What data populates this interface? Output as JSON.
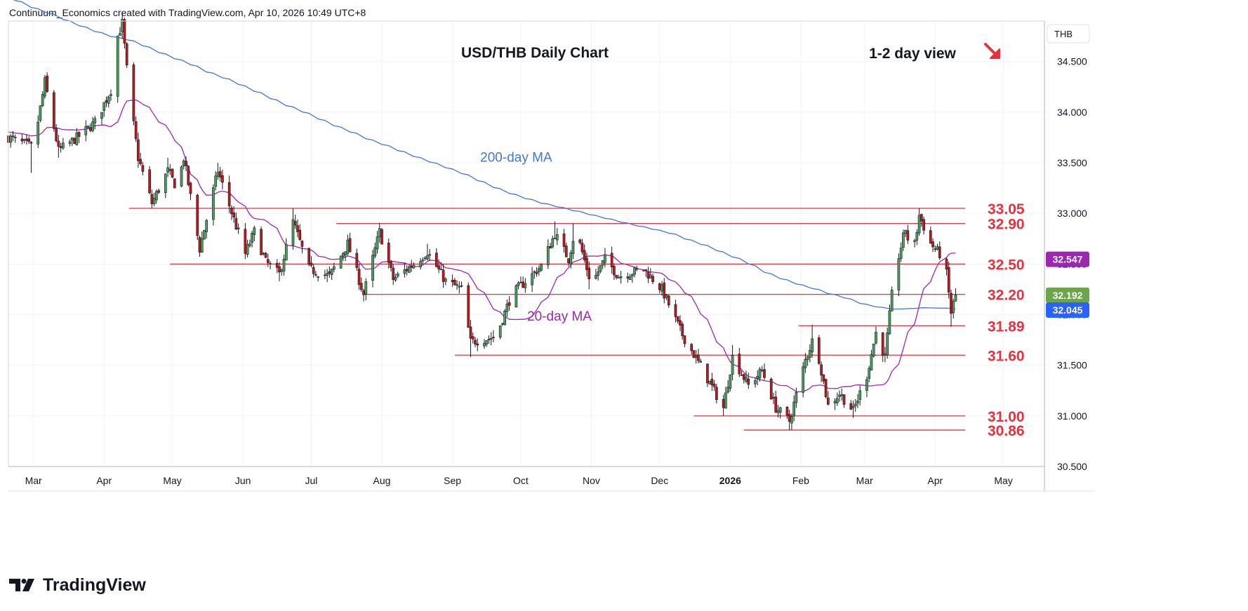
{
  "header": {
    "attribution": "Continuum_Economics created with TradingView.com, Apr 10, 2026 10:49 UTC+8"
  },
  "footer": {
    "brand": "TradingView"
  },
  "colors": {
    "up_candle": "#4c9e5c",
    "down_candle": "#c2171c",
    "ma200": "#3f76e0",
    "ma20": "#9c27b0",
    "levels": "#e5323e",
    "grid": "#f0f3fa",
    "axis_text": "#131722",
    "last_price_bg": "#6ba74a",
    "ma200_tag_bg": "#2962ff",
    "ma20_tag_bg": "#9c27b0"
  },
  "chart_data": {
    "type": "candlestick",
    "title": "USD/THB Daily Chart",
    "view_label": "1-2 day view",
    "view_arrow": "down-right-arrow",
    "currency_label": "THB",
    "ylim": [
      30.5,
      34.9
    ],
    "xlim": [
      "2025-02-18",
      "2026-05-19"
    ],
    "y_ticks": [
      "30.500",
      "31.000",
      "31.500",
      "32.000",
      "32.500",
      "33.000",
      "33.500",
      "34.000",
      "34.500"
    ],
    "x_ticks": [
      {
        "label": "Mar",
        "date": "2025-03-01"
      },
      {
        "label": "Apr",
        "date": "2025-04-01"
      },
      {
        "label": "May",
        "date": "2025-05-01"
      },
      {
        "label": "Jun",
        "date": "2025-06-01"
      },
      {
        "label": "Jul",
        "date": "2025-07-01"
      },
      {
        "label": "Aug",
        "date": "2025-08-01"
      },
      {
        "label": "Sep",
        "date": "2025-09-01"
      },
      {
        "label": "Oct",
        "date": "2025-10-01"
      },
      {
        "label": "Nov",
        "date": "2025-11-01"
      },
      {
        "label": "Dec",
        "date": "2025-12-01"
      },
      {
        "label": "2026",
        "date": "2026-01-01",
        "bold": true
      },
      {
        "label": "Feb",
        "date": "2026-02-01"
      },
      {
        "label": "Mar",
        "date": "2026-03-01"
      },
      {
        "label": "Apr",
        "date": "2026-04-01"
      },
      {
        "label": "May",
        "date": "2026-05-01"
      }
    ],
    "price_tags": [
      {
        "name": "ma20-tag",
        "label": "32.547",
        "value": 32.547,
        "kind": "ma20"
      },
      {
        "name": "last-price-tag",
        "label": "32.192",
        "value": 32.192,
        "kind": "last"
      },
      {
        "name": "ma200-tag",
        "label": "32.045",
        "value": 32.045,
        "kind": "ma200"
      }
    ],
    "levels": [
      {
        "label": "33.05",
        "value": 33.05,
        "from": "2025-04-12"
      },
      {
        "label": "32.90",
        "value": 32.9,
        "from": "2025-07-12"
      },
      {
        "label": "32.50",
        "value": 32.5,
        "from": "2025-04-30"
      },
      {
        "label": "32.20",
        "value": 32.2,
        "from": "2025-07-24"
      },
      {
        "label": "31.89",
        "value": 31.89,
        "from": "2026-01-31"
      },
      {
        "label": "31.60",
        "value": 31.6,
        "from": "2025-09-02"
      },
      {
        "label": "31.00",
        "value": 31.0,
        "from": "2025-12-16"
      },
      {
        "label": "30.86",
        "value": 30.86,
        "from": "2026-01-07"
      }
    ],
    "annotations": [
      {
        "name": "ma200-label",
        "text": "200-day MA",
        "date": "2025-09-29",
        "value": 33.51,
        "color": "ma200"
      },
      {
        "name": "ma20-label",
        "text": "20-day MA",
        "date": "2025-10-18",
        "value": 31.94,
        "color": "ma20"
      }
    ],
    "anchors": [
      {
        "date": "2025-02-18",
        "close": 33.75,
        "low": 33.5
      },
      {
        "date": "2025-03-01",
        "close": 33.65,
        "low": 33.4
      },
      {
        "date": "2025-03-06",
        "close": 34.3,
        "high": 34.32
      },
      {
        "date": "2025-03-12",
        "close": 33.62,
        "low": 33.55
      },
      {
        "date": "2025-03-22",
        "close": 33.78
      },
      {
        "date": "2025-03-28",
        "close": 33.9
      },
      {
        "date": "2025-04-04",
        "close": 34.22
      },
      {
        "date": "2025-04-07",
        "close": 34.75
      },
      {
        "date": "2025-04-09",
        "close": 34.88,
        "high": 34.92
      },
      {
        "date": "2025-04-12",
        "close": 34.2
      },
      {
        "date": "2025-04-16",
        "close": 33.55
      },
      {
        "date": "2025-04-22",
        "close": 33.1,
        "low": 33.05
      },
      {
        "date": "2025-04-29",
        "close": 33.42,
        "high": 33.55
      },
      {
        "date": "2025-05-03",
        "close": 33.25
      },
      {
        "date": "2025-05-06",
        "close": 33.55
      },
      {
        "date": "2025-05-13",
        "close": 32.65,
        "low": 32.6
      },
      {
        "date": "2025-05-21",
        "close": 33.42,
        "high": 33.5
      },
      {
        "date": "2025-06-02",
        "close": 32.6,
        "low": 32.55
      },
      {
        "date": "2025-06-06",
        "close": 32.82
      },
      {
        "date": "2025-06-11",
        "close": 32.52
      },
      {
        "date": "2025-06-17",
        "close": 32.4,
        "low": 32.33
      },
      {
        "date": "2025-06-23",
        "close": 32.92,
        "high": 33.05
      },
      {
        "date": "2025-06-30",
        "close": 32.45
      },
      {
        "date": "2025-07-09",
        "close": 32.38
      },
      {
        "date": "2025-07-17",
        "close": 32.7
      },
      {
        "date": "2025-07-24",
        "close": 32.2,
        "low": 32.13
      },
      {
        "date": "2025-07-31",
        "close": 32.82,
        "high": 32.88
      },
      {
        "date": "2025-08-06",
        "close": 32.35
      },
      {
        "date": "2025-08-15",
        "close": 32.5
      },
      {
        "date": "2025-08-21",
        "close": 32.62,
        "high": 32.7
      },
      {
        "date": "2025-08-29",
        "close": 32.33
      },
      {
        "date": "2025-09-05",
        "close": 32.25
      },
      {
        "date": "2025-09-09",
        "close": 31.73,
        "low": 31.58
      },
      {
        "date": "2025-09-20",
        "close": 31.78
      },
      {
        "date": "2025-09-27",
        "close": 32.2
      },
      {
        "date": "2025-10-04",
        "close": 32.35
      },
      {
        "date": "2025-10-10",
        "close": 32.48
      },
      {
        "date": "2025-10-16",
        "close": 32.8,
        "high": 32.92
      },
      {
        "date": "2025-10-22",
        "close": 32.55
      },
      {
        "date": "2025-10-25",
        "close": 32.85,
        "high": 32.9
      },
      {
        "date": "2025-11-01",
        "close": 32.3,
        "low": 32.25
      },
      {
        "date": "2025-11-07",
        "close": 32.55
      },
      {
        "date": "2025-11-13",
        "close": 32.38
      },
      {
        "date": "2025-11-24",
        "close": 32.45
      },
      {
        "date": "2025-12-02",
        "close": 32.25
      },
      {
        "date": "2025-12-11",
        "close": 31.8
      },
      {
        "date": "2025-12-20",
        "close": 31.45
      },
      {
        "date": "2025-12-29",
        "close": 31.08,
        "low": 31.0
      },
      {
        "date": "2026-01-02",
        "close": 31.58,
        "high": 31.7
      },
      {
        "date": "2026-01-09",
        "close": 31.3
      },
      {
        "date": "2026-01-15",
        "close": 31.45
      },
      {
        "date": "2026-01-21",
        "close": 31.08
      },
      {
        "date": "2026-01-27",
        "close": 30.95,
        "low": 30.86
      },
      {
        "date": "2026-02-03",
        "close": 31.55
      },
      {
        "date": "2026-02-07",
        "close": 31.8,
        "high": 31.9
      },
      {
        "date": "2026-02-13",
        "close": 31.1
      },
      {
        "date": "2026-02-18",
        "close": 31.22
      },
      {
        "date": "2026-02-24",
        "close": 31.05,
        "low": 30.98
      },
      {
        "date": "2026-03-02",
        "close": 31.4
      },
      {
        "date": "2026-03-06",
        "close": 31.82
      },
      {
        "date": "2026-03-10",
        "close": 31.58
      },
      {
        "date": "2026-03-14",
        "close": 32.4
      },
      {
        "date": "2026-03-19",
        "close": 32.85
      },
      {
        "date": "2026-03-22",
        "close": 32.55
      },
      {
        "date": "2026-03-25",
        "close": 32.98,
        "high": 33.05
      },
      {
        "date": "2026-03-30",
        "close": 32.7
      },
      {
        "date": "2026-04-03",
        "close": 32.6
      },
      {
        "date": "2026-04-06",
        "close": 32.4
      },
      {
        "date": "2026-04-08",
        "close": 32.02,
        "low": 31.88
      },
      {
        "date": "2026-04-10",
        "close": 32.192,
        "high": 32.22
      }
    ]
  }
}
